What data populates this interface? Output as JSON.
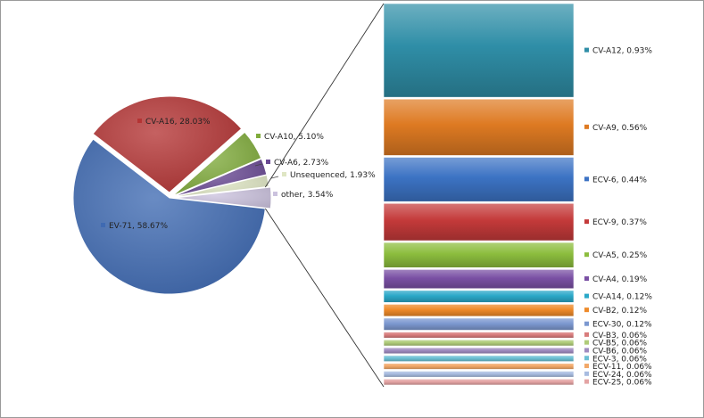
{
  "chart_data": {
    "type": "bar-of-pie",
    "pie": {
      "slices": [
        {
          "label": "EV-71, 58.67%",
          "value": 58.67,
          "color": "#3f6ab2"
        },
        {
          "label": "CV-A16, 28.03%",
          "value": 28.03,
          "color": "#b43434"
        },
        {
          "label": "CV-A10, 5.10%",
          "value": 5.1,
          "color": "#80ac3c"
        },
        {
          "label": "CV-A6, 2.73%",
          "value": 2.73,
          "color": "#6a4a94"
        },
        {
          "label": "Unsequenced, 1.93%",
          "value": 1.93,
          "color": "#dfe6c4"
        },
        {
          "label": "other, 3.54%",
          "value": 3.54,
          "color": "#cbc2de"
        }
      ]
    },
    "bar": {
      "segments": [
        {
          "label": "CV-A12, 0.93%",
          "value": 0.93,
          "color": "#2f8ea7"
        },
        {
          "label": "CV-A9, 0.56%",
          "value": 0.56,
          "color": "#de7a22"
        },
        {
          "label": "ECV-6, 0.44%",
          "value": 0.44,
          "color": "#3c73c4"
        },
        {
          "label": "ECV-9, 0.37%",
          "value": 0.37,
          "color": "#c43a3a"
        },
        {
          "label": "CV-A5, 0.25%",
          "value": 0.25,
          "color": "#8cbd3e"
        },
        {
          "label": "CV-A4, 0.19%",
          "value": 0.19,
          "color": "#7a50a4"
        },
        {
          "label": "CV-A14, 0.12%",
          "value": 0.12,
          "color": "#2aa8c8"
        },
        {
          "label": "CV-B2, 0.12%",
          "value": 0.12,
          "color": "#ee8a2a"
        },
        {
          "label": "ECV-30, 0.12%",
          "value": 0.12,
          "color": "#7c98d0"
        },
        {
          "label": "CV-B3, 0.06%",
          "value": 0.06,
          "color": "#d87c7c"
        },
        {
          "label": "CV-B5, 0.06%",
          "value": 0.06,
          "color": "#b0cc7a"
        },
        {
          "label": "CV-B6, 0.06%",
          "value": 0.06,
          "color": "#a08cc0"
        },
        {
          "label": "ECV-3, 0.06%",
          "value": 0.06,
          "color": "#6cc0d4"
        },
        {
          "label": "ECV-11, 0.06%",
          "value": 0.06,
          "color": "#f2a868"
        },
        {
          "label": "ECV-24, 0.06%",
          "value": 0.06,
          "color": "#a8bce0"
        },
        {
          "label": "ECV-25, 0.06%",
          "value": 0.06,
          "color": "#e4a4a4"
        }
      ]
    },
    "legend": "none",
    "grid": false
  }
}
